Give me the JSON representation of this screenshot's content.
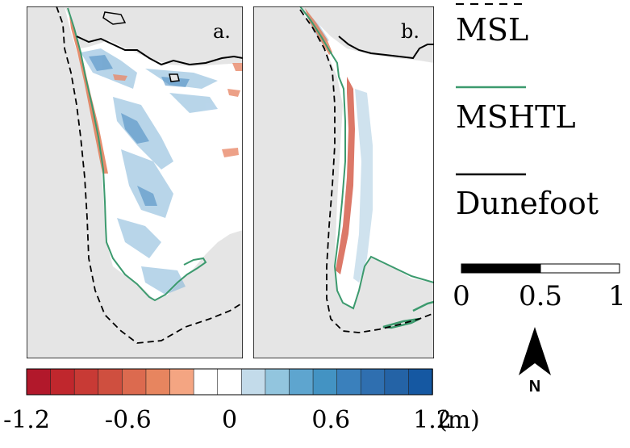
{
  "panels": [
    {
      "id": "a",
      "label": "a."
    },
    {
      "id": "b",
      "label": "b."
    }
  ],
  "legend": {
    "items": [
      {
        "name": "MSL",
        "style": "dashed",
        "color": "#000000"
      },
      {
        "name": "MSHTL",
        "style": "solid",
        "color": "#3c9a6e"
      },
      {
        "name": "Dunefoot",
        "style": "solid",
        "color": "#000000"
      }
    ]
  },
  "scale_bar": {
    "ticks": [
      "0",
      "0.5",
      "1"
    ]
  },
  "north_arrow": {
    "label": "N"
  },
  "colorbar": {
    "unit": "(m)",
    "tick_labels": [
      "-1.2",
      "-0.6",
      "0",
      "0.6",
      "1.2"
    ],
    "min": -1.2,
    "max": 1.2,
    "colors": [
      "#b2182b",
      "#c0272d",
      "#c83a35",
      "#cf4f3f",
      "#dc6a4f",
      "#e7855f",
      "#f4a582",
      "#ffffff",
      "#ffffff",
      "#c3dbea",
      "#92c5de",
      "#5ea5cf",
      "#4393c3",
      "#3a80bc",
      "#2f6fb0",
      "#2463a6",
      "#1558a2"
    ]
  },
  "colors": {
    "land": "#e5e5e5",
    "mshtl": "#3c9a6e",
    "erosion": "#e07a55",
    "accretion": "#7fb3d8"
  }
}
